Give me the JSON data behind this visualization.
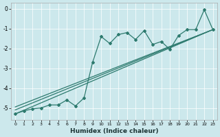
{
  "xlabel": "Humidex (Indice chaleur)",
  "bg_color": "#cce8ec",
  "line_color": "#2d7a6e",
  "grid_color": "#ffffff",
  "xlim": [
    -0.5,
    23.5
  ],
  "ylim": [
    -5.6,
    0.3
  ],
  "yticks": [
    0,
    -1,
    -2,
    -3,
    -4,
    -5
  ],
  "xticks": [
    0,
    1,
    2,
    3,
    4,
    5,
    6,
    7,
    8,
    9,
    10,
    11,
    12,
    13,
    14,
    15,
    16,
    17,
    18,
    19,
    20,
    21,
    22,
    23
  ],
  "series_wiggly_x": [
    0,
    1,
    2,
    3,
    4,
    5,
    6,
    7,
    8,
    9,
    10,
    11,
    12,
    13,
    14,
    15,
    16,
    17,
    18,
    19,
    20,
    21,
    22,
    23
  ],
  "series_wiggly_y": [
    -5.3,
    -5.15,
    -5.05,
    -5.0,
    -4.85,
    -4.85,
    -4.6,
    -4.9,
    -4.5,
    -2.7,
    -1.4,
    -1.75,
    -1.3,
    -1.2,
    -1.55,
    -1.1,
    -1.8,
    -1.65,
    -2.05,
    -1.35,
    -1.05,
    -1.05,
    -0.05,
    -1.05
  ],
  "line1_x": [
    0,
    23
  ],
  "line1_y": [
    -5.3,
    -1.05
  ],
  "line2_x": [
    0,
    23
  ],
  "line2_y": [
    -5.1,
    -1.05
  ],
  "line3_x": [
    0,
    23
  ],
  "line3_y": [
    -4.95,
    -1.05
  ]
}
